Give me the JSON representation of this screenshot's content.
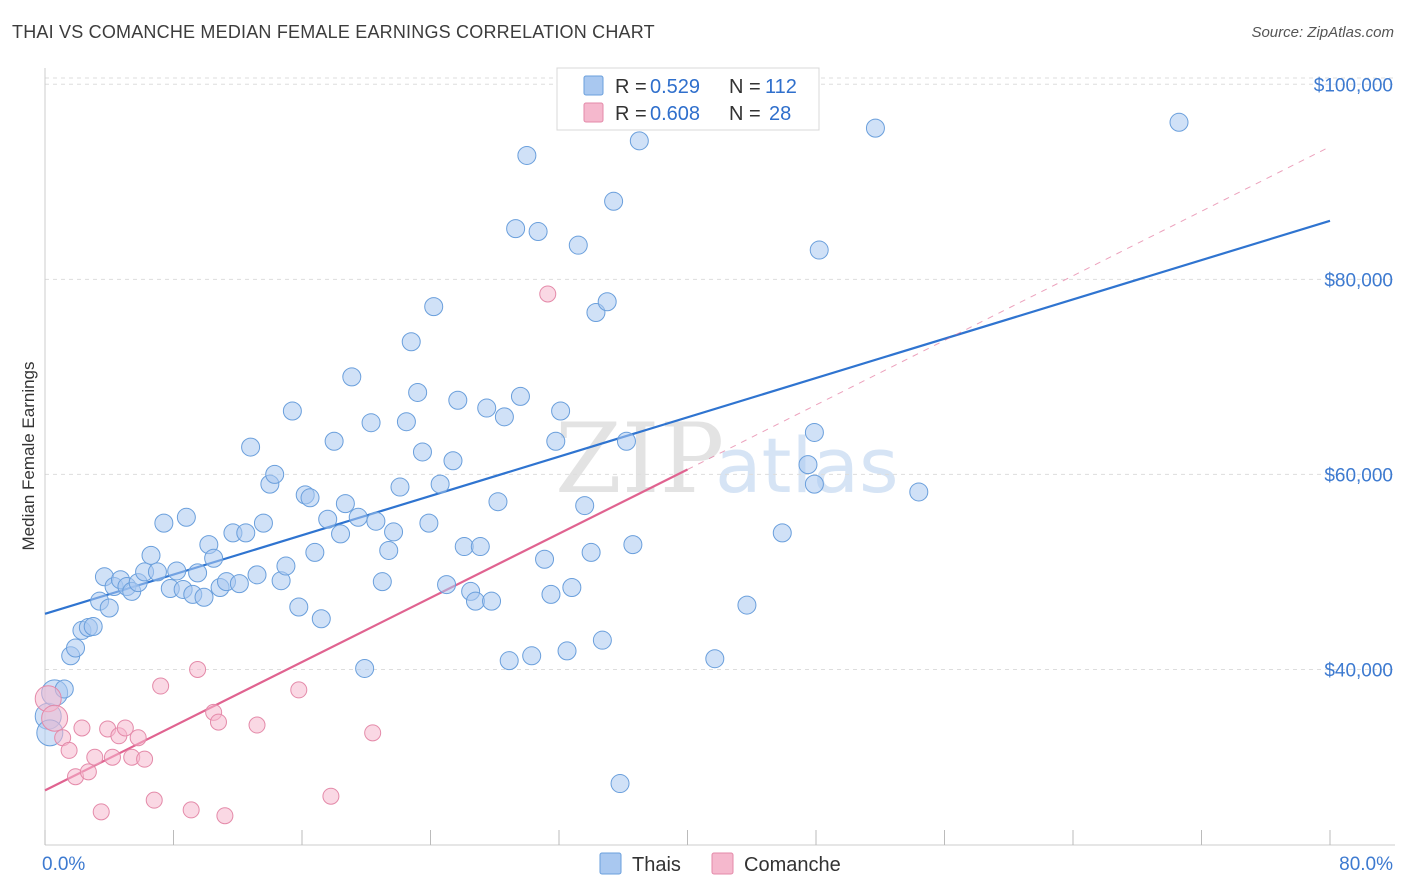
{
  "title": "THAI VS COMANCHE MEDIAN FEMALE EARNINGS CORRELATION CHART",
  "source": "Source: ZipAtlas.com",
  "watermark": {
    "zip": "ZIP",
    "atlas": "atlas"
  },
  "colors": {
    "thai_fill": "#a9c8f0",
    "thai_stroke": "#6a9fdc",
    "thai_line": "#2f74d0",
    "comanche_fill": "#f5b8cd",
    "comanche_stroke": "#e48aa9",
    "comanche_line": "#e06390",
    "tick_text": "#3d7ad0",
    "grid": "#dddddd"
  },
  "legend": {
    "rows": [
      {
        "r_label": "R =",
        "r_value": "0.529",
        "n_label": "N =",
        "n_value": "112",
        "series": "thai"
      },
      {
        "r_label": "R =",
        "r_value": "0.608",
        "n_label": "N =",
        "n_value": "28",
        "series": "comanche"
      }
    ]
  },
  "bottom_legend": [
    {
      "label": "Thais",
      "series": "thai"
    },
    {
      "label": "Comanche",
      "series": "comanche"
    }
  ],
  "chart_data": {
    "type": "scatter",
    "xlabel": "",
    "ylabel": "Median Female Earnings",
    "xlim": [
      0,
      80
    ],
    "ylim": [
      22000,
      103000
    ],
    "x_tick_labels": [
      {
        "value": 0,
        "label": "0.0%"
      },
      {
        "value": 80,
        "label": "80.0%"
      }
    ],
    "y_ticks": [
      {
        "value": 40000,
        "label": "$40,000"
      },
      {
        "value": 60000,
        "label": "$60,000"
      },
      {
        "value": 80000,
        "label": "$80,000"
      },
      {
        "value": 100000,
        "label": "$100,000"
      }
    ],
    "series": [
      {
        "name": "Thais",
        "key": "thai",
        "trendline": {
          "x": [
            0,
            80
          ],
          "y": [
            45700,
            86000
          ],
          "style": "solid"
        },
        "points": [
          [
            0.2,
            35200
          ],
          [
            0.3,
            33500
          ],
          [
            0.6,
            37600
          ],
          [
            1.2,
            38000
          ],
          [
            1.6,
            41400
          ],
          [
            1.9,
            42200
          ],
          [
            2.3,
            44000
          ],
          [
            2.7,
            44300
          ],
          [
            3.0,
            44400
          ],
          [
            3.4,
            47000
          ],
          [
            3.7,
            49500
          ],
          [
            4.0,
            46300
          ],
          [
            4.3,
            48500
          ],
          [
            4.7,
            49200
          ],
          [
            5.1,
            48500
          ],
          [
            5.4,
            48000
          ],
          [
            5.8,
            48900
          ],
          [
            6.2,
            50000
          ],
          [
            6.6,
            51700
          ],
          [
            7.0,
            50000
          ],
          [
            7.4,
            55000
          ],
          [
            7.8,
            48300
          ],
          [
            8.2,
            50100
          ],
          [
            8.6,
            48200
          ],
          [
            8.8,
            55600
          ],
          [
            9.2,
            47700
          ],
          [
            9.5,
            49900
          ],
          [
            9.9,
            47400
          ],
          [
            10.2,
            52800
          ],
          [
            10.5,
            51400
          ],
          [
            10.9,
            48400
          ],
          [
            11.3,
            49000
          ],
          [
            11.7,
            54000
          ],
          [
            12.1,
            48800
          ],
          [
            12.5,
            54000
          ],
          [
            12.8,
            62800
          ],
          [
            13.2,
            49700
          ],
          [
            13.6,
            55000
          ],
          [
            14.0,
            59000
          ],
          [
            14.3,
            60000
          ],
          [
            14.7,
            49100
          ],
          [
            15.0,
            50600
          ],
          [
            15.4,
            66500
          ],
          [
            15.8,
            46400
          ],
          [
            16.2,
            57900
          ],
          [
            16.5,
            57600
          ],
          [
            16.8,
            52000
          ],
          [
            17.2,
            45200
          ],
          [
            17.6,
            55400
          ],
          [
            18.0,
            63400
          ],
          [
            18.4,
            53900
          ],
          [
            18.7,
            57000
          ],
          [
            19.1,
            70000
          ],
          [
            19.5,
            55600
          ],
          [
            19.9,
            40100
          ],
          [
            20.3,
            65300
          ],
          [
            20.6,
            55200
          ],
          [
            21.0,
            49000
          ],
          [
            21.4,
            52200
          ],
          [
            21.7,
            54100
          ],
          [
            22.1,
            58700
          ],
          [
            22.5,
            65400
          ],
          [
            22.8,
            73600
          ],
          [
            23.2,
            68400
          ],
          [
            23.5,
            62300
          ],
          [
            23.9,
            55000
          ],
          [
            24.2,
            77200
          ],
          [
            24.6,
            59000
          ],
          [
            25.0,
            48700
          ],
          [
            25.4,
            61400
          ],
          [
            25.7,
            67600
          ],
          [
            26.1,
            52600
          ],
          [
            26.5,
            48000
          ],
          [
            26.8,
            47000
          ],
          [
            27.1,
            52600
          ],
          [
            27.5,
            66800
          ],
          [
            27.8,
            47000
          ],
          [
            28.2,
            57200
          ],
          [
            28.6,
            65900
          ],
          [
            28.9,
            40900
          ],
          [
            29.3,
            85200
          ],
          [
            29.6,
            68000
          ],
          [
            30.0,
            92700
          ],
          [
            30.3,
            41400
          ],
          [
            30.7,
            84900
          ],
          [
            31.1,
            51300
          ],
          [
            31.5,
            47700
          ],
          [
            31.8,
            63400
          ],
          [
            32.1,
            66500
          ],
          [
            32.5,
            41900
          ],
          [
            32.8,
            48400
          ],
          [
            33.2,
            83500
          ],
          [
            33.6,
            56800
          ],
          [
            34.0,
            52000
          ],
          [
            34.3,
            76600
          ],
          [
            34.7,
            43000
          ],
          [
            35.0,
            77700
          ],
          [
            35.4,
            88000
          ],
          [
            35.8,
            28300
          ],
          [
            36.2,
            63400
          ],
          [
            36.6,
            52800
          ],
          [
            37.0,
            94200
          ],
          [
            41.7,
            41100
          ],
          [
            43.7,
            46600
          ],
          [
            45.9,
            54000
          ],
          [
            47.5,
            61000
          ],
          [
            47.9,
            59000
          ],
          [
            47.9,
            64300
          ],
          [
            48.2,
            83000
          ],
          [
            51.7,
            95500
          ],
          [
            54.4,
            58200
          ],
          [
            70.6,
            96100
          ]
        ]
      },
      {
        "name": "Comanche",
        "key": "comanche",
        "trendline": {
          "x": [
            0,
            40
          ],
          "y": [
            27600,
            60500
          ],
          "style": "solid"
        },
        "trendline_extension": {
          "x": [
            40,
            80
          ],
          "y": [
            60500,
            93600
          ],
          "style": "dashed"
        },
        "points": [
          [
            0.2,
            37000
          ],
          [
            0.6,
            35000
          ],
          [
            1.1,
            33000
          ],
          [
            1.5,
            31700
          ],
          [
            1.9,
            29000
          ],
          [
            2.3,
            34000
          ],
          [
            2.7,
            29500
          ],
          [
            3.1,
            31000
          ],
          [
            3.5,
            25400
          ],
          [
            3.9,
            33900
          ],
          [
            4.2,
            31000
          ],
          [
            4.6,
            33200
          ],
          [
            5.0,
            34000
          ],
          [
            5.4,
            31000
          ],
          [
            5.8,
            33000
          ],
          [
            6.2,
            30800
          ],
          [
            6.8,
            26600
          ],
          [
            7.2,
            38300
          ],
          [
            9.5,
            40000
          ],
          [
            9.1,
            25600
          ],
          [
            10.5,
            35600
          ],
          [
            10.8,
            34600
          ],
          [
            11.2,
            25000
          ],
          [
            13.2,
            34300
          ],
          [
            15.8,
            37900
          ],
          [
            17.8,
            27000
          ],
          [
            20.4,
            33500
          ],
          [
            31.3,
            78500
          ]
        ]
      }
    ]
  }
}
